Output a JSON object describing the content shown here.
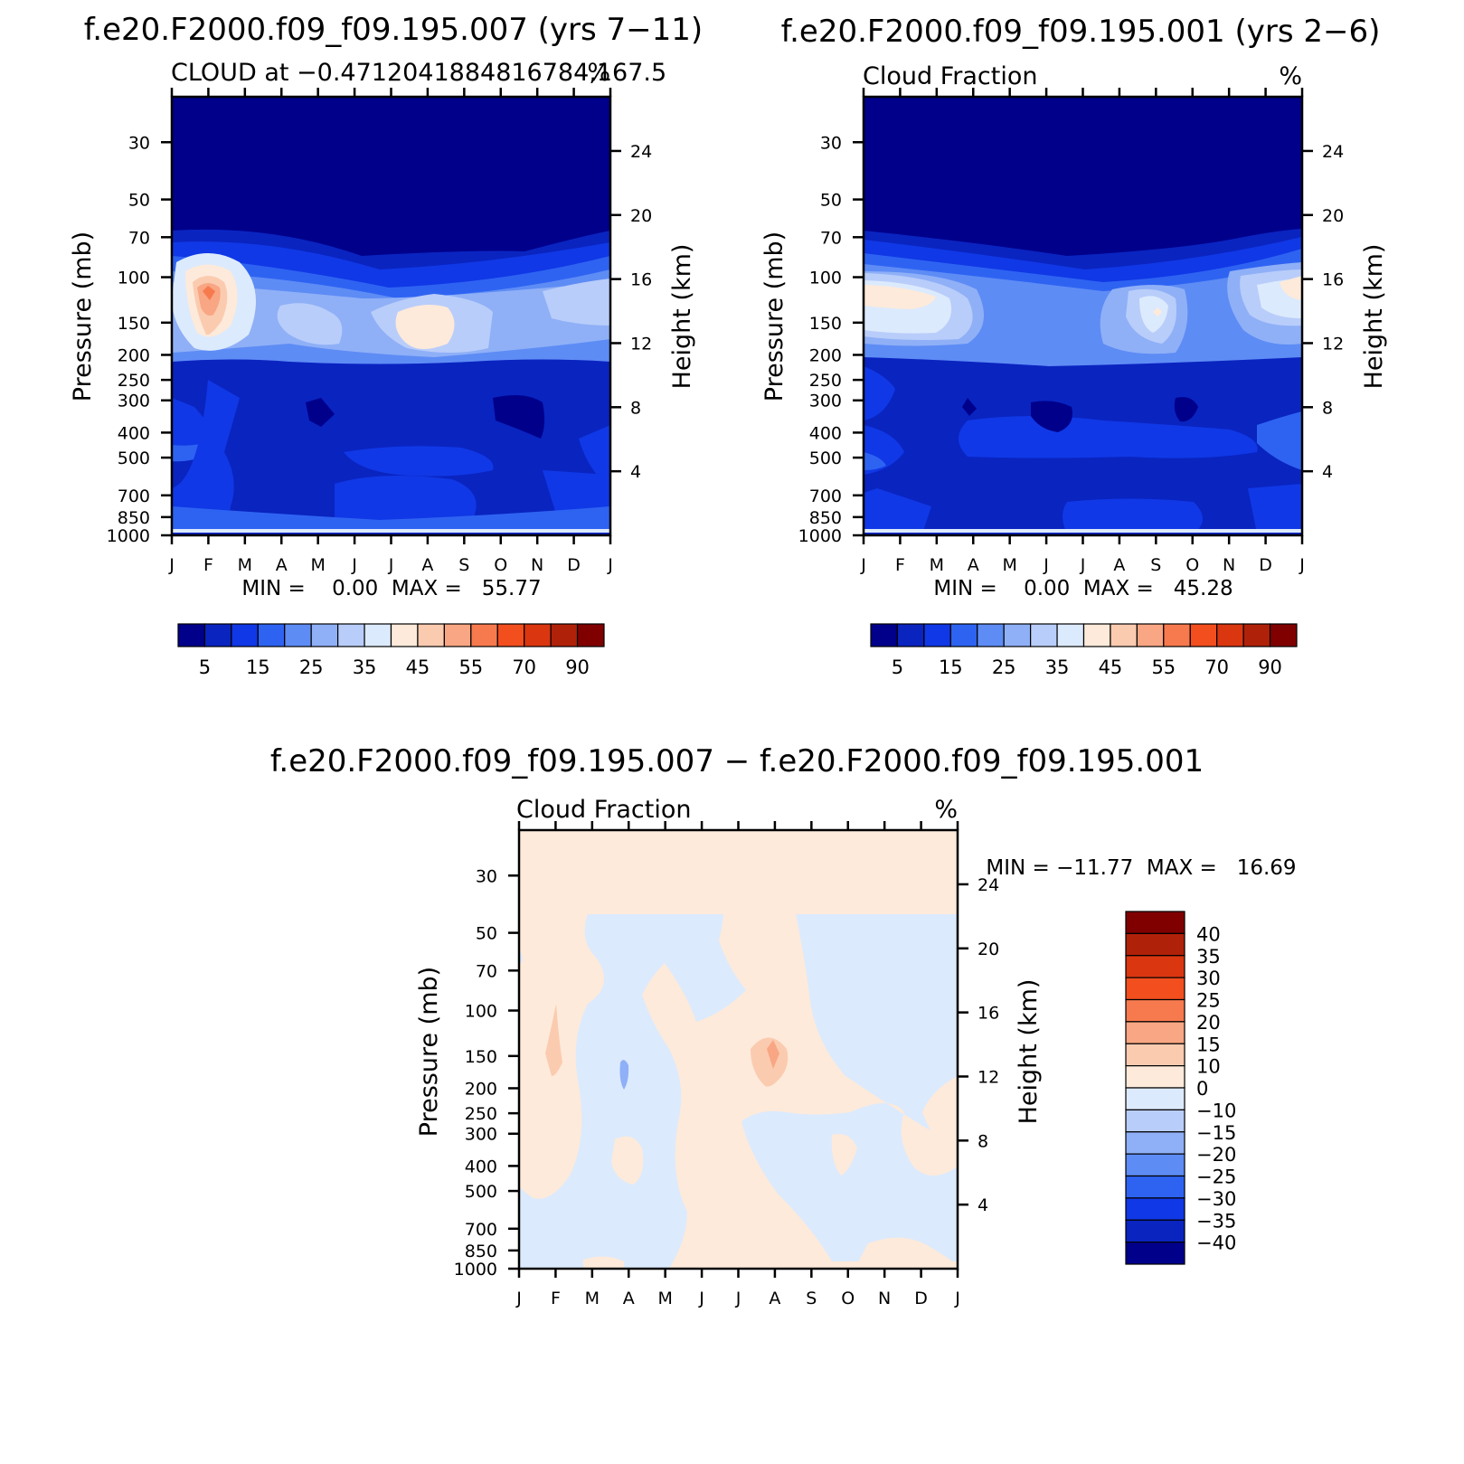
{
  "months": [
    "J",
    "F",
    "M",
    "A",
    "M",
    "J",
    "J",
    "A",
    "S",
    "O",
    "N",
    "D",
    "J"
  ],
  "pressure_ticks": [
    30,
    50,
    70,
    100,
    150,
    200,
    250,
    300,
    400,
    500,
    700,
    850,
    1000
  ],
  "height_ticks": [
    4,
    8,
    12,
    16,
    20,
    24
  ],
  "y_label": "Pressure (mb)",
  "y2_label": "Height (km)",
  "panels": [
    {
      "title": "f.e20.F2000.f09_f09.195.007 (yrs 7−11)",
      "subtitle_left": "CLOUD at −0.4712041884816784,167.5",
      "subtitle_right": "%",
      "stats": "MIN =    0.00  MAX =   55.77"
    },
    {
      "title": "f.e20.F2000.f09_f09.195.001 (yrs 2−6)",
      "subtitle_left": "Cloud Fraction",
      "subtitle_right": "%",
      "stats": "MIN =    0.00  MAX =   45.28"
    },
    {
      "title": "f.e20.F2000.f09_f09.195.007 − f.e20.F2000.f09_f09.195.001",
      "subtitle_left": "Cloud Fraction",
      "subtitle_right": "%",
      "stats": "MIN = −11.77  MAX =   16.69"
    }
  ],
  "colorbar_abs": {
    "labels": [
      "5",
      "15",
      "25",
      "35",
      "45",
      "55",
      "70",
      "90"
    ],
    "colors": [
      "#00008B",
      "#0A24C0",
      "#1038E6",
      "#2E63F2",
      "#5E8CF5",
      "#8FB0F7",
      "#B9CDFA",
      "#DCEAFD",
      "#FDEADA",
      "#FBCBB0",
      "#F8A683",
      "#F77A4E",
      "#F24E1E",
      "#DA3610",
      "#B0210A",
      "#800000"
    ]
  },
  "colorbar_diff": {
    "labels": [
      "40",
      "35",
      "30",
      "25",
      "20",
      "15",
      "10",
      "0",
      "−10",
      "−15",
      "−20",
      "−25",
      "−30",
      "−35",
      "−40"
    ],
    "colors": [
      "#800000",
      "#B0210A",
      "#DA3610",
      "#F24E1E",
      "#F77A4E",
      "#F8A683",
      "#FBCBB0",
      "#FDEADA",
      "#DCEAFD",
      "#B9CDFA",
      "#8FB0F7",
      "#5E8CF5",
      "#2E63F2",
      "#1038E6",
      "#0A24C0",
      "#00008B"
    ]
  },
  "chart_data": [
    {
      "type": "heatmap",
      "title": "f.e20.F2000.f09_f09.195.007 (yrs 7−11)",
      "variable": "CLOUD at −0.4712041884816784,167.5",
      "units": "%",
      "x_categories": [
        "J",
        "F",
        "M",
        "A",
        "M",
        "J",
        "J",
        "A",
        "S",
        "O",
        "N",
        "D",
        "J"
      ],
      "ylabel": "Pressure (mb)",
      "y2label": "Height (km)",
      "ylim": [
        1000,
        20
      ],
      "features": [
        {
          "month": 1.0,
          "pressure": 135,
          "value": 55
        },
        {
          "month": 7.0,
          "pressure": 180,
          "value": 42
        },
        {
          "month": 3.9,
          "pressure": 175,
          "value": 38
        },
        {
          "month": 3.9,
          "pressure": 400,
          "value": 3
        },
        {
          "month": 9.9,
          "pressure": 390,
          "value": 2
        }
      ],
      "min": 0.0,
      "max": 55.77
    },
    {
      "type": "heatmap",
      "title": "f.e20.F2000.f09_f09.195.001 (yrs 2−6)",
      "variable": "Cloud Fraction",
      "units": "%",
      "x_categories": [
        "J",
        "F",
        "M",
        "A",
        "M",
        "J",
        "J",
        "A",
        "S",
        "O",
        "N",
        "D",
        "J"
      ],
      "ylabel": "Pressure (mb)",
      "y2label": "Height (km)",
      "ylim": [
        1000,
        20
      ],
      "features": [
        {
          "month": 0.5,
          "pressure": 140,
          "value": 42
        },
        {
          "month": 8.0,
          "pressure": 150,
          "value": 40
        },
        {
          "month": 12.0,
          "pressure": 140,
          "value": 40
        },
        {
          "month": 5.0,
          "pressure": 400,
          "value": 3
        },
        {
          "month": 9.0,
          "pressure": 380,
          "value": 2
        }
      ],
      "min": 0.0,
      "max": 45.28
    },
    {
      "type": "heatmap",
      "title": "f.e20.F2000.f09_f09.195.007 − f.e20.F2000.f09_f09.195.001",
      "variable": "Cloud Fraction",
      "units": "%",
      "x_categories": [
        "J",
        "F",
        "M",
        "A",
        "M",
        "J",
        "J",
        "A",
        "S",
        "O",
        "N",
        "D",
        "J"
      ],
      "ylabel": "Pressure (mb)",
      "y2label": "Height (km)",
      "ylim": [
        1000,
        20
      ],
      "features": [
        {
          "month": 1.0,
          "pressure": 150,
          "value": 12
        },
        {
          "month": 7.0,
          "pressure": 170,
          "value": 15
        },
        {
          "month": 3.0,
          "pressure": 190,
          "value": -12
        }
      ],
      "min": -11.77,
      "max": 16.69
    }
  ]
}
